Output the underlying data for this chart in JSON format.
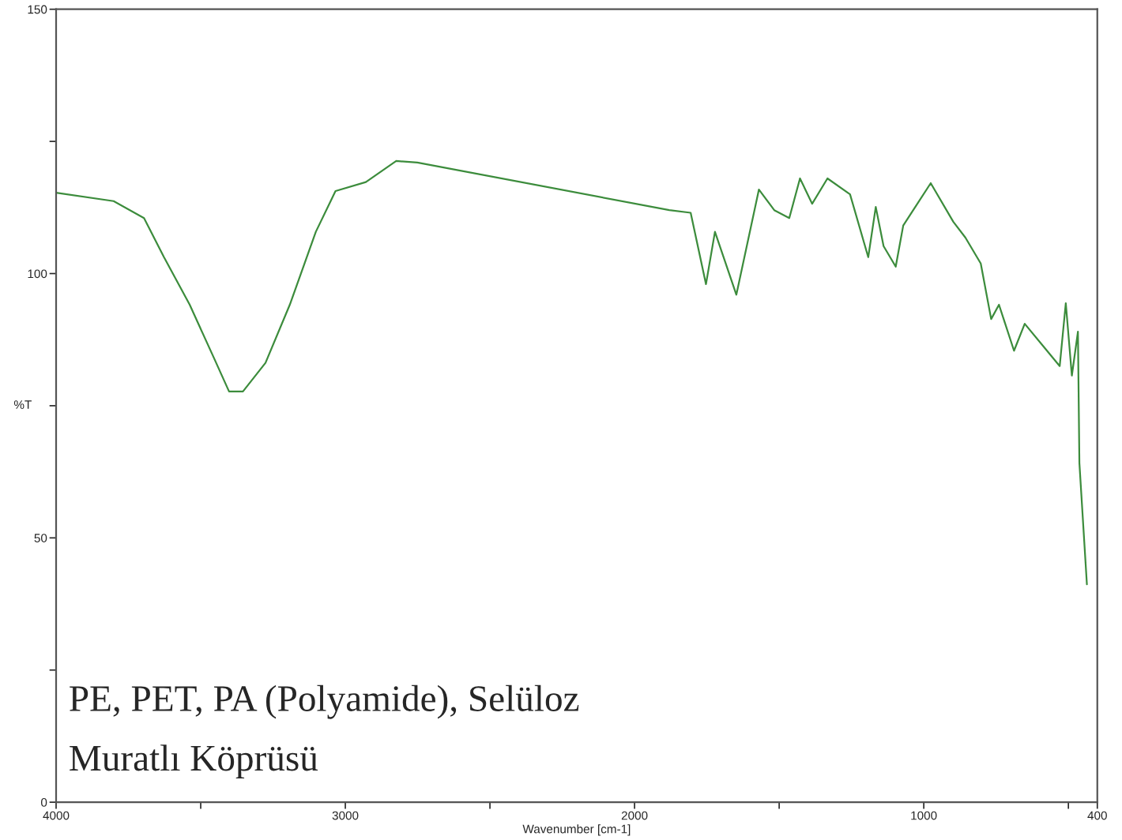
{
  "chart_data": {
    "type": "line",
    "xlabel": "Wavenumber [cm-1]",
    "ylabel": "%T",
    "annotations": [
      "PE, PET, PA (Polyamide), Selüloz",
      "Muratlı Köprüsü"
    ],
    "series": [
      {
        "color": "#3c8c3c",
        "x": [
          4000,
          3801,
          3696,
          3627,
          3538,
          3454,
          3402,
          3354,
          3276,
          3192,
          3102,
          3034,
          2929,
          2824,
          2751,
          1880,
          1806,
          1753,
          1722,
          1648,
          1570,
          1517,
          1465,
          1428,
          1386,
          1333,
          1255,
          1192,
          1166,
          1139,
          1097,
          1071,
          976,
          898,
          856,
          803,
          767,
          740,
          688,
          651,
          583,
          530,
          509,
          488,
          467,
          462,
          436
        ],
        "values": [
          115.3,
          113.7,
          110.5,
          103.1,
          94.1,
          84.0,
          77.7,
          77.7,
          83.1,
          94.1,
          107.9,
          115.6,
          117.3,
          121.3,
          121.0,
          112.0,
          111.5,
          98.0,
          107.9,
          96.0,
          115.9,
          112.0,
          110.5,
          118.0,
          113.2,
          118.0,
          115.0,
          103.1,
          112.6,
          105.2,
          101.3,
          109.1,
          117.1,
          109.8,
          106.8,
          101.9,
          91.4,
          94.1,
          85.4,
          90.5,
          86.0,
          82.5,
          94.4,
          80.7,
          89.0,
          64.2,
          41.2
        ]
      }
    ],
    "xlim": [
      4000,
      400
    ],
    "ylim": [
      0,
      150
    ],
    "xticks": [
      4000,
      {
        "value": 3500,
        "label": null
      },
      3000,
      {
        "value": 2500,
        "label": null
      },
      2000,
      {
        "value": 1500,
        "label": null
      },
      1000,
      {
        "value": 500,
        "label": null
      },
      400
    ],
    "yticks": [
      0,
      {
        "value": 25,
        "label": null
      },
      50,
      {
        "value": 75,
        "label": null
      },
      100,
      {
        "value": 125,
        "label": null
      },
      150
    ],
    "grid": false,
    "legend": false
  }
}
